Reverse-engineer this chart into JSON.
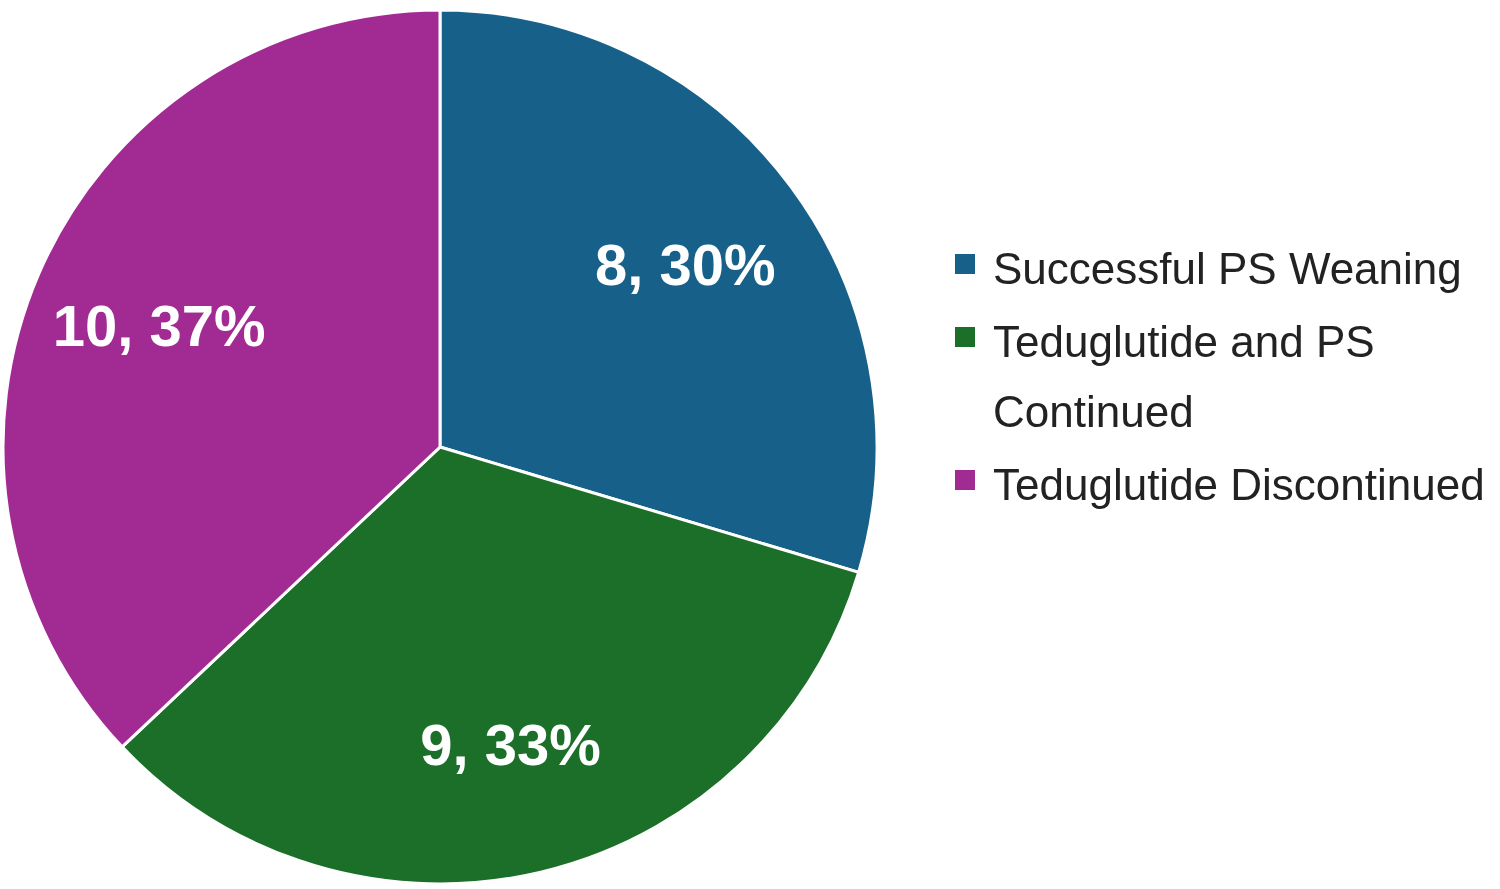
{
  "chart_data": {
    "type": "pie",
    "categories": [
      "Successful PS Weaning",
      "Teduglutide and PS Continued",
      "Teduglutide Discontinued"
    ],
    "values": [
      8,
      9,
      10
    ],
    "colors": [
      "#17608a",
      "#1b6f28",
      "#a22b93"
    ],
    "value_labels": [
      "8, 30%",
      "9, 33%",
      "10, 37%"
    ],
    "legend": "right"
  }
}
